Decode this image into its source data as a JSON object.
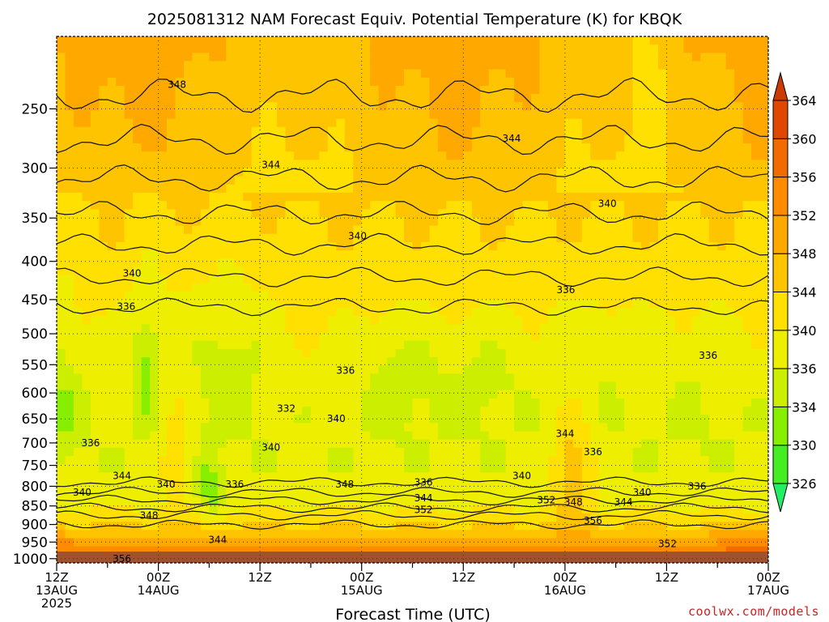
{
  "chart_data": {
    "type": "heatmap",
    "title": "2025081312 NAM Forecast Equiv. Potential Temperature (K) for KBQK",
    "xlabel": "Forecast Time (UTC)",
    "ylabel": "",
    "watermark": "coolwx.com/models",
    "x_ticks": [
      {
        "hour": 0,
        "line1": "12Z",
        "line2": "13AUG",
        "line3": "2025"
      },
      {
        "hour": 6,
        "line1": "",
        "line2": "",
        "line3": ""
      },
      {
        "hour": 12,
        "line1": "00Z",
        "line2": "14AUG",
        "line3": ""
      },
      {
        "hour": 18,
        "line1": "",
        "line2": "",
        "line3": ""
      },
      {
        "hour": 24,
        "line1": "12Z",
        "line2": "",
        "line3": ""
      },
      {
        "hour": 30,
        "line1": "",
        "line2": "",
        "line3": ""
      },
      {
        "hour": 36,
        "line1": "00Z",
        "line2": "15AUG",
        "line3": ""
      },
      {
        "hour": 42,
        "line1": "",
        "line2": "",
        "line3": ""
      },
      {
        "hour": 48,
        "line1": "12Z",
        "line2": "",
        "line3": ""
      },
      {
        "hour": 54,
        "line1": "",
        "line2": "",
        "line3": ""
      },
      {
        "hour": 60,
        "line1": "00Z",
        "line2": "16AUG",
        "line3": ""
      },
      {
        "hour": 66,
        "line1": "",
        "line2": "",
        "line3": ""
      },
      {
        "hour": 72,
        "line1": "12Z",
        "line2": "",
        "line3": ""
      },
      {
        "hour": 78,
        "line1": "",
        "line2": "",
        "line3": ""
      },
      {
        "hour": 84,
        "line1": "00Z",
        "line2": "17AUG",
        "line3": ""
      }
    ],
    "xlim": [
      0,
      84
    ],
    "y_ticks": [
      250,
      300,
      350,
      400,
      450,
      500,
      550,
      600,
      650,
      700,
      750,
      800,
      850,
      900,
      950,
      1000
    ],
    "ylim": [
      200,
      1013
    ],
    "y_scale": "log",
    "y_inverted": true,
    "colorbar": {
      "levels": [
        326,
        330,
        334,
        336,
        340,
        344,
        348,
        352,
        356,
        360,
        364
      ],
      "labels": [
        "326",
        "330",
        "334",
        "336",
        "340",
        "344",
        "348",
        "352",
        "356",
        "360",
        "364"
      ],
      "colors": [
        "#22ee66",
        "#44ee22",
        "#88ee00",
        "#ccee00",
        "#eeee00",
        "#ffe000",
        "#ffc400",
        "#ffa800",
        "#ff8c00",
        "#f06c00",
        "#e04800",
        "#cc3a00"
      ]
    },
    "grid": true,
    "contour_labels": [
      {
        "text": "348",
        "hour": 14.2,
        "p": 232
      },
      {
        "text": "344",
        "hour": 53.7,
        "p": 274
      },
      {
        "text": "344",
        "hour": 25.3,
        "p": 297
      },
      {
        "text": "340",
        "hour": 65.0,
        "p": 335
      },
      {
        "text": "340",
        "hour": 35.5,
        "p": 370
      },
      {
        "text": "340",
        "hour": 8.9,
        "p": 415
      },
      {
        "text": "336",
        "hour": 60.1,
        "p": 437
      },
      {
        "text": "336",
        "hour": 8.2,
        "p": 460
      },
      {
        "text": "336",
        "hour": 76.9,
        "p": 535
      },
      {
        "text": "336",
        "hour": 34.1,
        "p": 560
      },
      {
        "text": "332",
        "hour": 27.1,
        "p": 630
      },
      {
        "text": "340",
        "hour": 33.0,
        "p": 650
      },
      {
        "text": "344",
        "hour": 60.0,
        "p": 680
      },
      {
        "text": "336",
        "hour": 4.0,
        "p": 700
      },
      {
        "text": "340",
        "hour": 25.3,
        "p": 710
      },
      {
        "text": "336",
        "hour": 63.3,
        "p": 720
      },
      {
        "text": "344",
        "hour": 7.7,
        "p": 775
      },
      {
        "text": "340",
        "hour": 54.9,
        "p": 775
      },
      {
        "text": "336",
        "hour": 43.3,
        "p": 790
      },
      {
        "text": "340",
        "hour": 12.9,
        "p": 795
      },
      {
        "text": "336",
        "hour": 21.0,
        "p": 795
      },
      {
        "text": "348",
        "hour": 34.0,
        "p": 795
      },
      {
        "text": "336",
        "hour": 75.6,
        "p": 800
      },
      {
        "text": "340",
        "hour": 3.0,
        "p": 815
      },
      {
        "text": "340",
        "hour": 69.1,
        "p": 815
      },
      {
        "text": "344",
        "hour": 43.3,
        "p": 830
      },
      {
        "text": "352",
        "hour": 57.8,
        "p": 835
      },
      {
        "text": "348",
        "hour": 61.0,
        "p": 840
      },
      {
        "text": "344",
        "hour": 66.9,
        "p": 840
      },
      {
        "text": "352",
        "hour": 43.3,
        "p": 860
      },
      {
        "text": "348",
        "hour": 10.9,
        "p": 875
      },
      {
        "text": "356",
        "hour": 63.3,
        "p": 890
      },
      {
        "text": "344",
        "hour": 19.0,
        "p": 943
      },
      {
        "text": "352",
        "hour": 72.1,
        "p": 955
      },
      {
        "text": "356",
        "hour": 7.7,
        "p": 1000
      }
    ]
  }
}
